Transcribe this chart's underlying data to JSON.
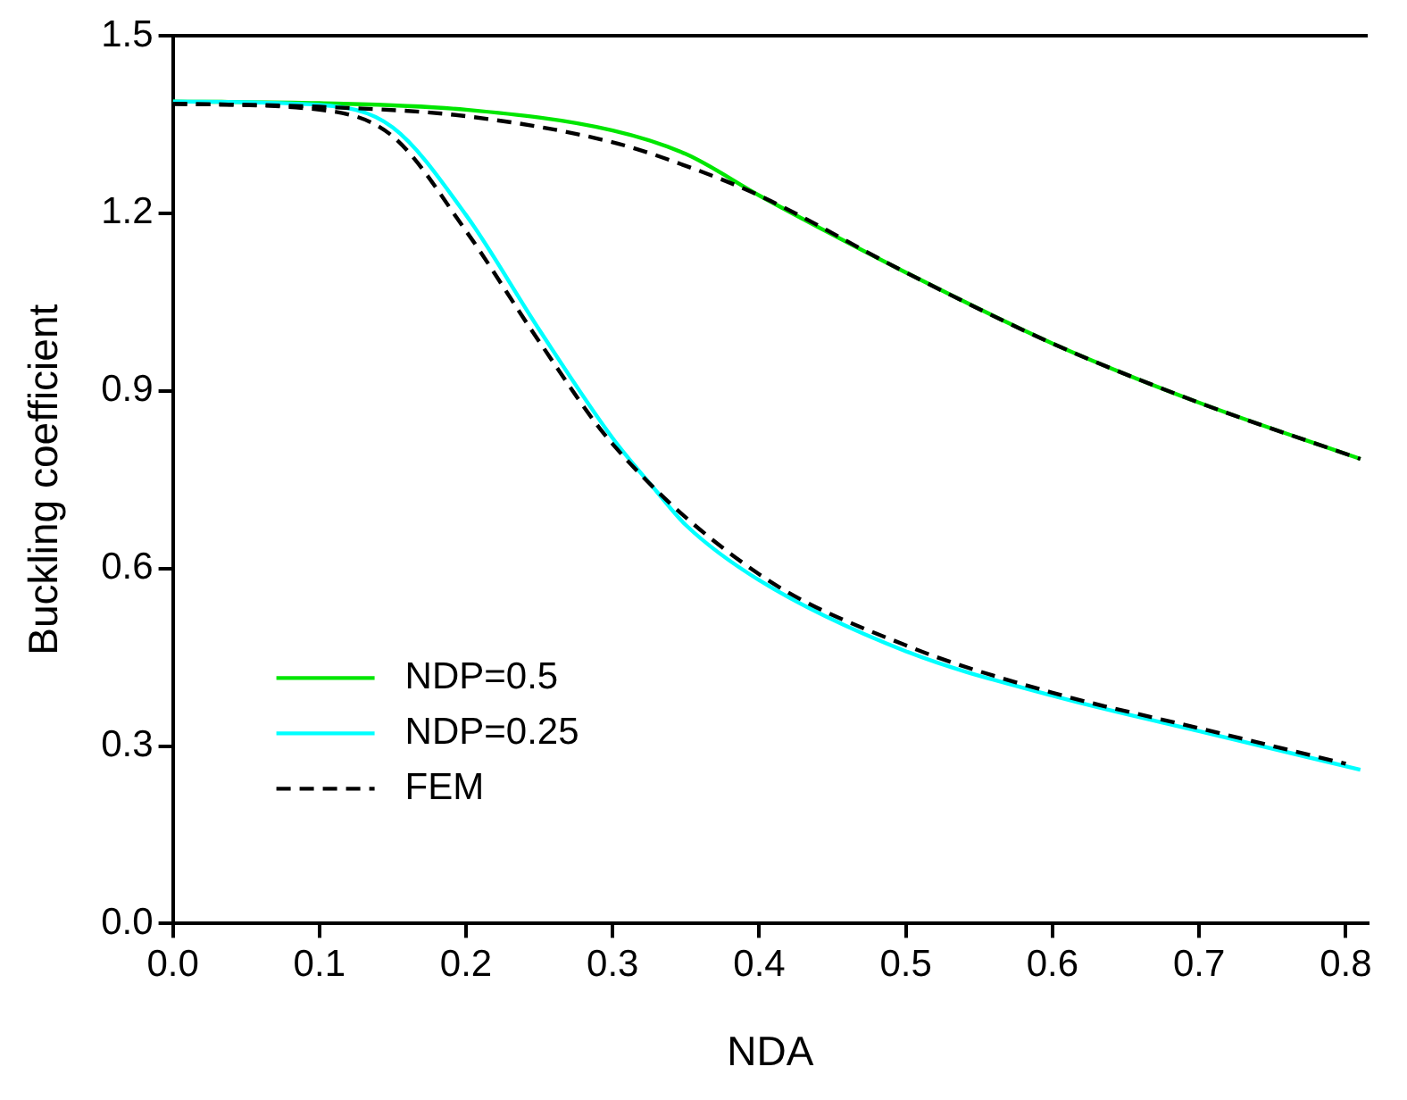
{
  "chart_data": {
    "type": "line",
    "xlabel": "NDA",
    "ylabel": "Buckling coefficient",
    "xlim": [
      0,
      0.815
    ],
    "xticks": [
      {
        "value": 0,
        "label": "0.0"
      },
      0.1,
      0.2,
      0.3,
      0.4,
      0.5,
      0.6,
      0.7,
      0.8
    ],
    "ylim": [
      0,
      1.5
    ],
    "yticks": [
      {
        "value": 0,
        "label": "0.0"
      },
      0.3,
      0.6,
      0.9,
      1.2,
      1.5
    ],
    "grid": false,
    "legend": "bottom left",
    "marker": "none",
    "series": [
      {
        "name": "NDP=0.5",
        "color": "#00e600",
        "line_style": "solid",
        "x": [
          0,
          0.1,
          0.2,
          0.3,
          0.35,
          0.4,
          0.5,
          0.6,
          0.7,
          0.81
        ],
        "values": [
          1.389,
          1.386,
          1.375,
          1.34,
          1.3,
          1.23,
          1.1,
          0.98,
          0.88,
          0.785
        ]
      },
      {
        "name": "NDP=0.25",
        "color": "#00ffff",
        "line_style": "solid",
        "x": [
          0,
          0.1,
          0.15,
          0.2,
          0.25,
          0.3,
          0.33,
          0.35,
          0.4,
          0.5,
          0.6,
          0.7,
          0.81
        ],
        "values": [
          1.389,
          1.383,
          1.345,
          1.197,
          1.003,
          0.82,
          0.73,
          0.673,
          0.58,
          0.46,
          0.385,
          0.325,
          0.26
        ]
      },
      {
        "name": "FEM",
        "color": "#000000",
        "line_style": "dashed",
        "x": [
          0,
          0.1,
          0.2,
          0.3,
          0.35,
          0.4,
          0.5,
          0.6,
          0.7,
          0.81
        ],
        "values": [
          1.385,
          1.38,
          1.364,
          1.32,
          1.28,
          1.23,
          1.1,
          0.98,
          0.88,
          0.785
        ]
      },
      {
        "color": "#000000",
        "line_style": "dashed",
        "x": [
          0,
          0.1,
          0.15,
          0.2,
          0.25,
          0.3,
          0.4,
          0.5,
          0.6,
          0.7,
          0.8
        ],
        "values": [
          1.385,
          1.375,
          1.33,
          1.17,
          0.983,
          0.81,
          0.59,
          0.47,
          0.39,
          0.33,
          0.27
        ]
      }
    ]
  }
}
